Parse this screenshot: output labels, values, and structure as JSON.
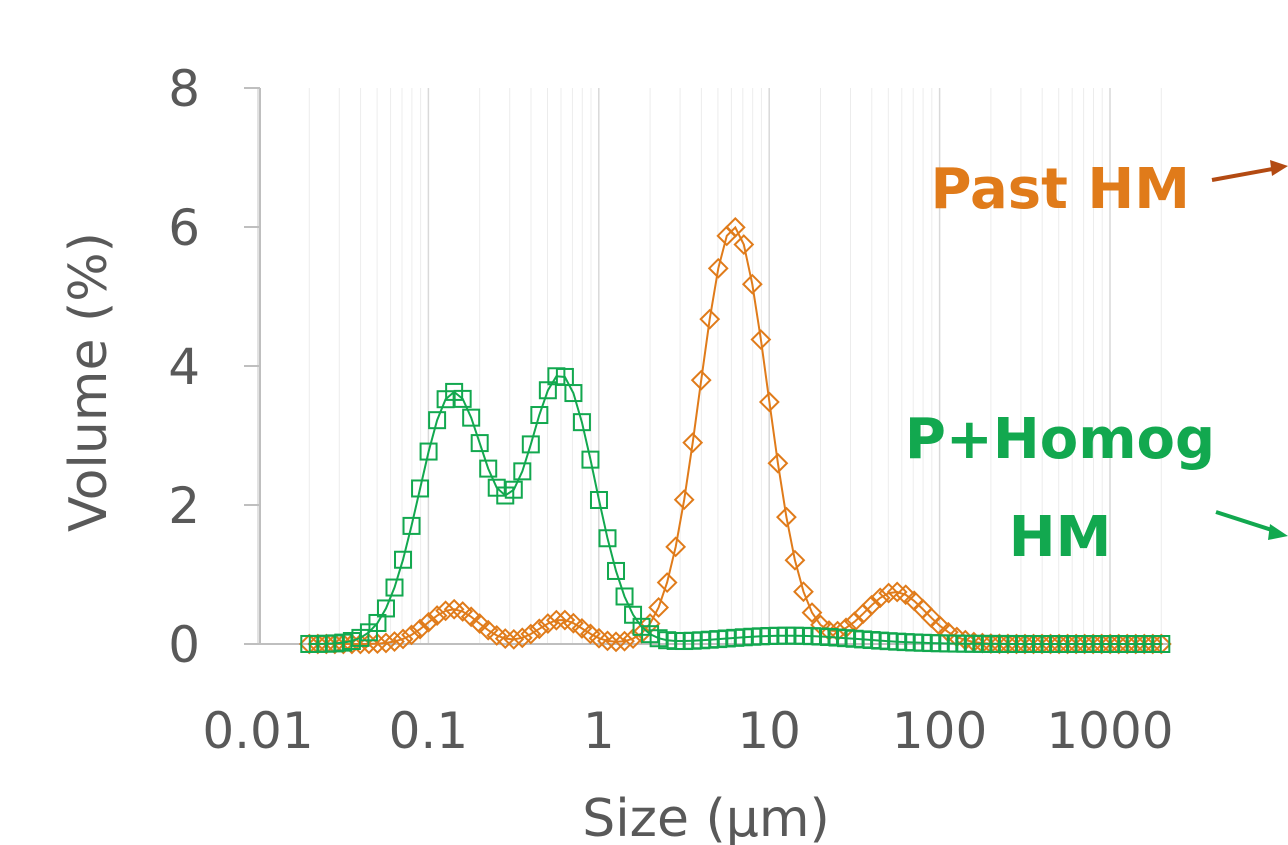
{
  "chart_data": {
    "type": "scatter",
    "title": "",
    "xlabel": "Size (µm)",
    "ylabel": "Volume (%)",
    "x_scale": "log",
    "xlim": [
      0.01,
      2000
    ],
    "ylim": [
      0,
      8
    ],
    "x_ticks": [
      {
        "value": 0.01,
        "label": "0.01"
      },
      {
        "value": 0.1,
        "label": "0.1"
      },
      {
        "value": 1,
        "label": "1"
      },
      {
        "value": 10,
        "label": "10"
      },
      {
        "value": 100,
        "label": "100"
      },
      {
        "value": 1000,
        "label": "1000"
      }
    ],
    "y_ticks": [
      {
        "value": 0,
        "label": "0"
      },
      {
        "value": 2,
        "label": "2"
      },
      {
        "value": 4,
        "label": "4"
      },
      {
        "value": 6,
        "label": "6"
      },
      {
        "value": 8,
        "label": "8"
      }
    ],
    "grid": "vertical minor gridlines",
    "series": [
      {
        "name": "Past HM",
        "color": "#E07B1A",
        "marker": "diamond",
        "peaks": [
          {
            "x": 0.02,
            "y": 0.0,
            "w": 0.01
          },
          {
            "x": 0.14,
            "y": 0.5,
            "w": 0.15
          },
          {
            "x": 0.6,
            "y": 0.35,
            "w": 0.13
          },
          {
            "x": 6.2,
            "y": 6.0,
            "w": 0.2
          },
          {
            "x": 55,
            "y": 0.75,
            "w": 0.18
          }
        ],
        "x_range": [
          0.02,
          2000
        ]
      },
      {
        "name": "P+Homog HM",
        "color": "#12A84F",
        "marker": "square",
        "peaks": [
          {
            "x": 0.14,
            "y": 3.6,
            "w": 0.2
          },
          {
            "x": 0.6,
            "y": 3.85,
            "w": 0.2
          },
          {
            "x": 13,
            "y": 0.12,
            "w": 0.4
          }
        ],
        "x_range": [
          0.02,
          2000
        ]
      }
    ],
    "annotations": [
      {
        "text": "Past HM",
        "color": "#E07B1A"
      },
      {
        "text": "P+Homog",
        "color": "#12A84F"
      },
      {
        "text": "HM",
        "color": "#12A84F"
      }
    ]
  }
}
